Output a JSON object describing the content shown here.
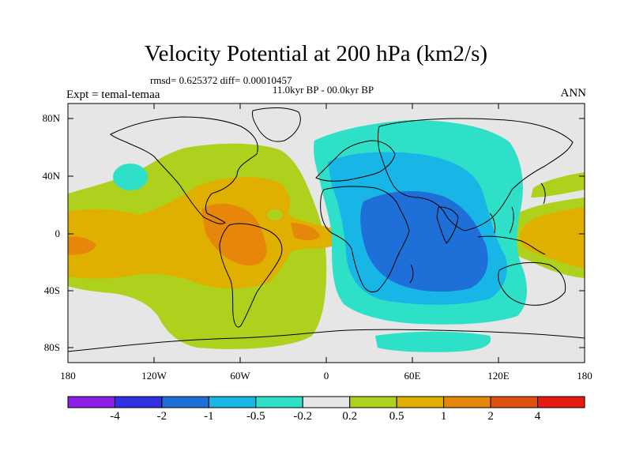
{
  "title": "Velocity Potential at 200 hPa (km2/s)",
  "stats_line": "rmsd= 0.625372 diff= 0.00010457",
  "period_line": "11.0kyr BP - 00.0kyr BP",
  "experiment_label": "Expt = temal-temaa",
  "season_label": "ANN",
  "lat_ticks": [
    "80N",
    "40N",
    "0",
    "40S",
    "80S"
  ],
  "lon_ticks": [
    "180",
    "120W",
    "60W",
    "0",
    "60E",
    "120E",
    "180"
  ],
  "colorbar": {
    "colors": [
      "#8c1fe6",
      "#3030e0",
      "#1e6fd8",
      "#18b6e6",
      "#2ee0c8",
      "#e6e6e6",
      "#aed11e",
      "#e0b000",
      "#e6860a",
      "#e05010",
      "#e61a10"
    ],
    "labels": [
      "-4",
      "-2",
      "-1",
      "-0.5",
      "-0.2",
      "0.2",
      "0.5",
      "1",
      "2",
      "4"
    ]
  }
}
